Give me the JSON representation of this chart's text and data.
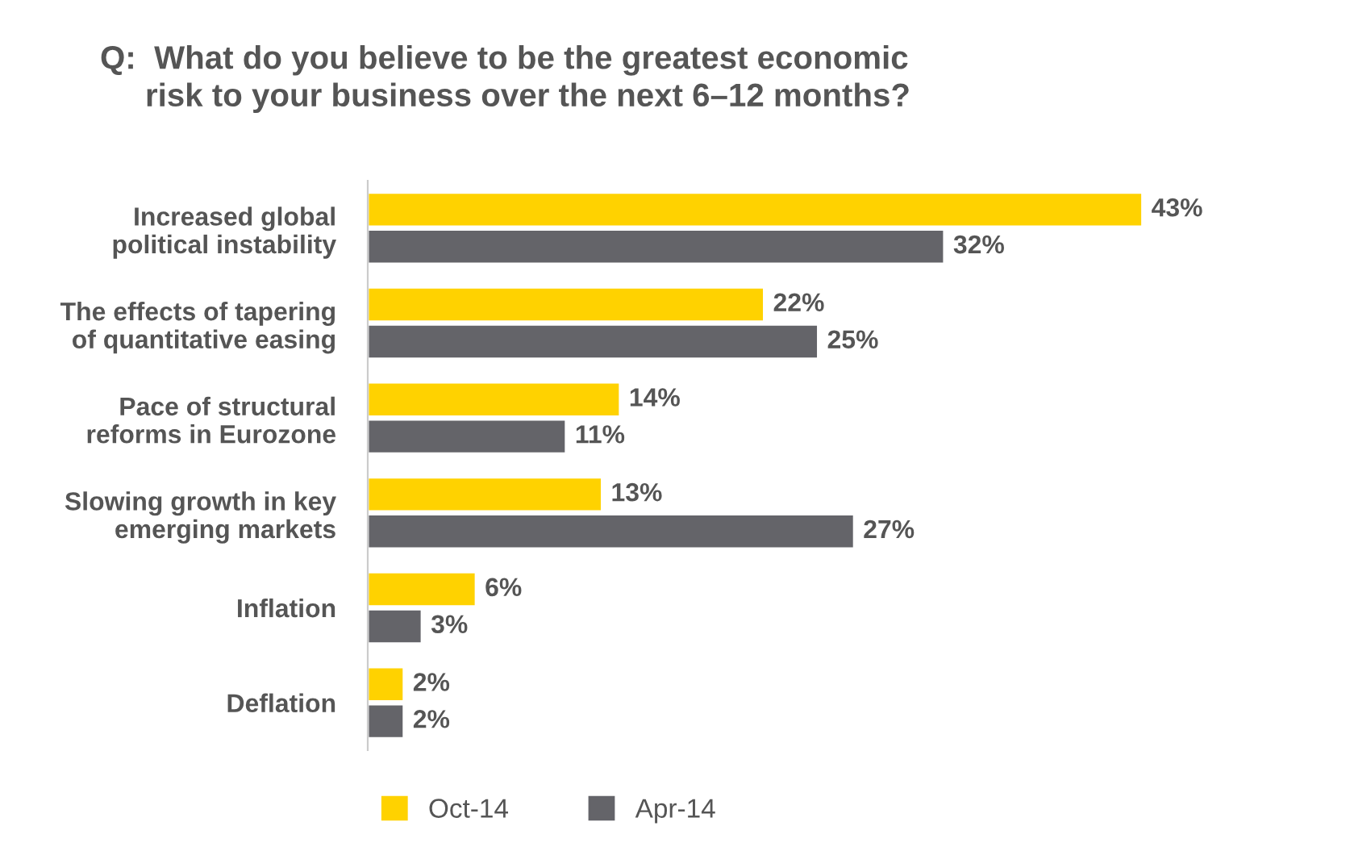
{
  "chart_data": {
    "type": "bar",
    "orientation": "horizontal",
    "title": "Q:  What do you believe to be the greatest economic\n     risk to your business over the next 6–12 months?",
    "categories": [
      "Increased global\npolitical instability",
      "The effects of tapering\nof quantitative easing",
      "Pace of structural\nreforms in Eurozone",
      "Slowing growth in key\nemerging markets",
      "Inflation",
      "Deflation"
    ],
    "series": [
      {
        "name": "Oct-14",
        "color": "#ffd200",
        "values": [
          43,
          22,
          14,
          13,
          6,
          2
        ],
        "value_labels": [
          "43%",
          "22%",
          "14%",
          "13%",
          "6%",
          "2%"
        ]
      },
      {
        "name": "Apr-14",
        "color": "#646469",
        "values": [
          32,
          25,
          11,
          27,
          3,
          2
        ],
        "value_labels": [
          "32%",
          "25%",
          "11%",
          "27%",
          "3%",
          "2%"
        ]
      }
    ],
    "legend": "bottom left",
    "grid": false
  }
}
